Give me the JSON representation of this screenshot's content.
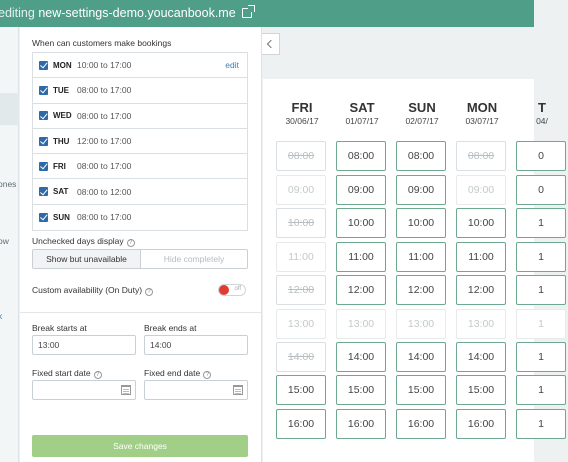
{
  "topbar": {
    "prefix": "editing",
    "site": "new-settings-demo.youcanbook.me"
  },
  "leftnav": {
    "fragments": [
      "ones",
      "ow",
      "k"
    ]
  },
  "settings": {
    "heading": "When can customers make bookings",
    "days": [
      {
        "name": "MON",
        "hours": "10:00 to 17:00",
        "edit": "edit"
      },
      {
        "name": "TUE",
        "hours": "08:00 to 17:00"
      },
      {
        "name": "WED",
        "hours": "08:00 to 17:00"
      },
      {
        "name": "THU",
        "hours": "12:00 to 17:00"
      },
      {
        "name": "FRI",
        "hours": "08:00 to 17:00"
      },
      {
        "name": "SAT",
        "hours": "08:00 to 12:00"
      },
      {
        "name": "SUN",
        "hours": "08:00 to 17:00"
      }
    ],
    "unchecked_label": "Unchecked days display",
    "unchecked_options": [
      "Show but unavailable",
      "Hide completely"
    ],
    "custom_avail_label": "Custom availability (On Duty)",
    "toggle_text": "off",
    "break_start_label": "Break starts at",
    "break_start_value": "13:00",
    "break_end_label": "Break ends at",
    "break_end_value": "14:00",
    "fixed_start_label": "Fixed start date",
    "fixed_end_label": "Fixed end date",
    "save_label": "Save changes",
    "help_glyph": "?"
  },
  "calendar": {
    "columns": [
      {
        "dow": "FRI",
        "date": "30/06/17",
        "slots": [
          [
            "08:00",
            "booked"
          ],
          [
            "09:00",
            "closed"
          ],
          [
            "10:00",
            "booked"
          ],
          [
            "11:00",
            "closed"
          ],
          [
            "12:00",
            "booked"
          ],
          [
            "13:00",
            "closed"
          ],
          [
            "14:00",
            "booked"
          ],
          [
            "15:00",
            "open"
          ],
          [
            "16:00",
            "open"
          ]
        ]
      },
      {
        "dow": "SAT",
        "date": "01/07/17",
        "slots": [
          [
            "08:00",
            "open"
          ],
          [
            "09:00",
            "open"
          ],
          [
            "10:00",
            "open"
          ],
          [
            "11:00",
            "open"
          ],
          [
            "12:00",
            "open"
          ],
          [
            "13:00",
            "closed"
          ],
          [
            "14:00",
            "open"
          ],
          [
            "15:00",
            "open"
          ],
          [
            "16:00",
            "open"
          ]
        ]
      },
      {
        "dow": "SUN",
        "date": "02/07/17",
        "slots": [
          [
            "08:00",
            "open"
          ],
          [
            "09:00",
            "open"
          ],
          [
            "10:00",
            "open"
          ],
          [
            "11:00",
            "open"
          ],
          [
            "12:00",
            "open"
          ],
          [
            "13:00",
            "closed"
          ],
          [
            "14:00",
            "open"
          ],
          [
            "15:00",
            "open"
          ],
          [
            "16:00",
            "open"
          ]
        ]
      },
      {
        "dow": "MON",
        "date": "03/07/17",
        "slots": [
          [
            "08:00",
            "booked"
          ],
          [
            "09:00",
            "closed"
          ],
          [
            "10:00",
            "open"
          ],
          [
            "11:00",
            "open"
          ],
          [
            "12:00",
            "open"
          ],
          [
            "13:00",
            "closed"
          ],
          [
            "14:00",
            "open"
          ],
          [
            "15:00",
            "open"
          ],
          [
            "16:00",
            "open"
          ]
        ]
      },
      {
        "dow": "T",
        "date": "04/",
        "slots": [
          [
            "0",
            "open"
          ],
          [
            "0",
            "open"
          ],
          [
            "1",
            "open"
          ],
          [
            "1",
            "open"
          ],
          [
            "1",
            "open"
          ],
          [
            "1",
            "closed"
          ],
          [
            "1",
            "open"
          ],
          [
            "1",
            "open"
          ],
          [
            "1",
            "open"
          ]
        ]
      }
    ]
  }
}
